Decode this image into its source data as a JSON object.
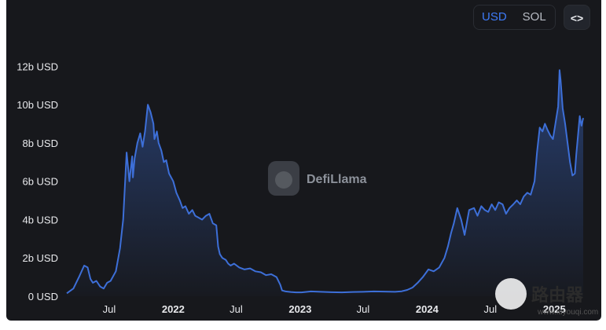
{
  "toggle": {
    "usd": "USD",
    "sol": "SOL"
  },
  "embed_label": "<>",
  "watermark": "DefiLlama",
  "stamp": {
    "text": "路由器",
    "url": "www.luyouqi.com"
  },
  "colors": {
    "line": "#3d6fd8",
    "background": "#17181c",
    "text": "#e8e9ec",
    "accent": "#3e7bf7"
  },
  "chart_data": {
    "type": "area",
    "title": "",
    "xlabel": "",
    "ylabel": "",
    "y_unit": "USD",
    "ylim": [
      0,
      13000000000
    ],
    "xlim": [
      "2021-03-01",
      "2025-03-25"
    ],
    "yticks": [
      "0 USD",
      "2b USD",
      "4b USD",
      "6b USD",
      "8b USD",
      "10b USD",
      "12b USD"
    ],
    "ytick_values": [
      0,
      2000000000,
      4000000000,
      6000000000,
      8000000000,
      10000000000,
      12000000000
    ],
    "xticks": [
      {
        "label": "Jul",
        "date": "2021-07-01",
        "bold": false
      },
      {
        "label": "2022",
        "date": "2022-01-01",
        "bold": true
      },
      {
        "label": "Jul",
        "date": "2022-07-01",
        "bold": false
      },
      {
        "label": "2023",
        "date": "2023-01-01",
        "bold": true
      },
      {
        "label": "Jul",
        "date": "2023-07-01",
        "bold": false
      },
      {
        "label": "2024",
        "date": "2024-01-01",
        "bold": true
      },
      {
        "label": "Jul",
        "date": "2024-07-01",
        "bold": false
      },
      {
        "label": "2025",
        "date": "2025-01-01",
        "bold": true
      }
    ],
    "grid": false,
    "series": [
      {
        "x": [
          "2021-03-01",
          "2021-03-20",
          "2021-04-05",
          "2021-04-20",
          "2021-04-30",
          "2021-05-08",
          "2021-05-15",
          "2021-05-25",
          "2021-06-05",
          "2021-06-15",
          "2021-06-25",
          "2021-07-05",
          "2021-07-20",
          "2021-08-01",
          "2021-08-10",
          "2021-08-20",
          "2021-08-28",
          "2021-09-05",
          "2021-09-07",
          "2021-09-12",
          "2021-09-20",
          "2021-09-28",
          "2021-10-05",
          "2021-10-12",
          "2021-10-20",
          "2021-10-28",
          "2021-11-05",
          "2021-11-08",
          "2021-11-15",
          "2021-11-20",
          "2021-11-28",
          "2021-12-05",
          "2021-12-12",
          "2021-12-20",
          "2022-01-01",
          "2022-01-10",
          "2022-01-20",
          "2022-01-28",
          "2022-02-05",
          "2022-02-15",
          "2022-02-25",
          "2022-03-05",
          "2022-03-15",
          "2022-03-25",
          "2022-04-05",
          "2022-04-15",
          "2022-04-25",
          "2022-05-05",
          "2022-05-10",
          "2022-05-15",
          "2022-05-22",
          "2022-06-01",
          "2022-06-08",
          "2022-06-15",
          "2022-06-25",
          "2022-07-10",
          "2022-07-25",
          "2022-08-10",
          "2022-08-25",
          "2022-09-10",
          "2022-09-25",
          "2022-10-10",
          "2022-10-25",
          "2022-11-05",
          "2022-11-10",
          "2022-11-20",
          "2022-12-05",
          "2022-12-20",
          "2023-01-05",
          "2023-02-01",
          "2023-03-01",
          "2023-04-01",
          "2023-05-01",
          "2023-06-01",
          "2023-07-01",
          "2023-08-01",
          "2023-09-01",
          "2023-10-01",
          "2023-10-20",
          "2023-11-05",
          "2023-11-20",
          "2023-12-05",
          "2023-12-20",
          "2024-01-05",
          "2024-01-20",
          "2024-02-05",
          "2024-02-20",
          "2024-03-01",
          "2024-03-10",
          "2024-03-18",
          "2024-03-28",
          "2024-04-08",
          "2024-04-18",
          "2024-05-01",
          "2024-05-15",
          "2024-05-25",
          "2024-06-05",
          "2024-06-15",
          "2024-06-25",
          "2024-07-05",
          "2024-07-15",
          "2024-07-25",
          "2024-08-05",
          "2024-08-15",
          "2024-08-25",
          "2024-09-05",
          "2024-09-15",
          "2024-09-25",
          "2024-10-05",
          "2024-10-15",
          "2024-10-25",
          "2024-11-05",
          "2024-11-12",
          "2024-11-20",
          "2024-11-28",
          "2024-12-05",
          "2024-12-12",
          "2024-12-20",
          "2024-12-28",
          "2025-01-05",
          "2025-01-12",
          "2025-01-16",
          "2025-01-19",
          "2025-01-25",
          "2025-02-01",
          "2025-02-08",
          "2025-02-15",
          "2025-02-22",
          "2025-03-01",
          "2025-03-05",
          "2025-03-10",
          "2025-03-15",
          "2025-03-20",
          "2025-03-25"
        ],
        "y": [
          150000000,
          400000000,
          1000000000,
          1600000000,
          1500000000,
          900000000,
          700000000,
          800000000,
          500000000,
          400000000,
          700000000,
          800000000,
          1300000000,
          2500000000,
          4000000000,
          7500000000,
          6000000000,
          7300000000,
          6200000000,
          7200000000,
          8000000000,
          8500000000,
          7800000000,
          8600000000,
          10000000000,
          9600000000,
          9000000000,
          8200000000,
          8600000000,
          8000000000,
          7600000000,
          7000000000,
          7100000000,
          6400000000,
          6000000000,
          5400000000,
          5000000000,
          4600000000,
          4700000000,
          4300000000,
          4500000000,
          4200000000,
          4100000000,
          4000000000,
          4200000000,
          4300000000,
          3800000000,
          3700000000,
          2600000000,
          2200000000,
          2000000000,
          1900000000,
          1700000000,
          1600000000,
          1700000000,
          1500000000,
          1400000000,
          1450000000,
          1300000000,
          1250000000,
          1100000000,
          1150000000,
          1000000000,
          600000000,
          300000000,
          250000000,
          220000000,
          200000000,
          200000000,
          250000000,
          230000000,
          210000000,
          200000000,
          220000000,
          230000000,
          250000000,
          240000000,
          230000000,
          260000000,
          330000000,
          450000000,
          700000000,
          1000000000,
          1400000000,
          1300000000,
          1500000000,
          2000000000,
          2600000000,
          3300000000,
          3800000000,
          4600000000,
          4000000000,
          3200000000,
          4500000000,
          4600000000,
          4200000000,
          4700000000,
          4500000000,
          4400000000,
          4800000000,
          4500000000,
          4900000000,
          4800000000,
          4300000000,
          4600000000,
          4800000000,
          5000000000,
          4800000000,
          5200000000,
          5400000000,
          5300000000,
          6000000000,
          7500000000,
          8800000000,
          8600000000,
          9000000000,
          8700000000,
          8400000000,
          8200000000,
          9100000000,
          9900000000,
          11800000000,
          11300000000,
          9800000000,
          9000000000,
          8000000000,
          7000000000,
          6300000000,
          6400000000,
          7400000000,
          8400000000,
          9400000000,
          8900000000,
          9300000000
        ]
      }
    ]
  }
}
